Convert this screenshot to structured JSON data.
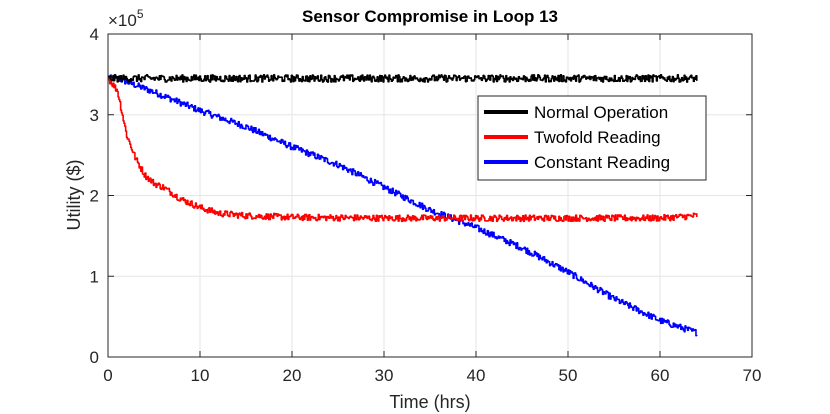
{
  "chart_data": {
    "type": "line",
    "title": "Sensor Compromise in Loop 13",
    "xlabel": "Time (hrs)",
    "ylabel": "Utility ($)",
    "xlim": [
      0,
      70
    ],
    "ylim": [
      0,
      4
    ],
    "y_scale_label": "×10",
    "y_scale_exponent": "5",
    "grid": true,
    "legend_position": "right",
    "xticks": [
      "0",
      "10",
      "20",
      "30",
      "40",
      "50",
      "60",
      "70"
    ],
    "yticks": [
      "0",
      "1",
      "2",
      "3",
      "4"
    ],
    "series": [
      {
        "name": "Normal Operation",
        "color": "#000000",
        "x": [
          0,
          5,
          10,
          15,
          20,
          25,
          30,
          35,
          40,
          45,
          50,
          55,
          60,
          64
        ],
        "y": [
          3.45,
          3.45,
          3.45,
          3.45,
          3.45,
          3.45,
          3.45,
          3.45,
          3.45,
          3.45,
          3.45,
          3.45,
          3.45,
          3.45
        ]
      },
      {
        "name": "Twofold Reading",
        "color": "#ff0000",
        "x": [
          0,
          1,
          2,
          3,
          4,
          5,
          6,
          8,
          10,
          12,
          15,
          20,
          30,
          40,
          50,
          60,
          64
        ],
        "y": [
          3.45,
          3.3,
          2.75,
          2.45,
          2.25,
          2.15,
          2.1,
          1.95,
          1.85,
          1.78,
          1.75,
          1.73,
          1.72,
          1.72,
          1.72,
          1.72,
          1.75
        ]
      },
      {
        "name": "Constant Reading",
        "color": "#0000ff",
        "x": [
          0,
          1,
          5,
          10,
          15,
          20,
          25,
          30,
          35,
          40,
          45,
          50,
          55,
          60,
          64
        ],
        "y": [
          3.45,
          3.45,
          3.28,
          3.05,
          2.85,
          2.6,
          2.38,
          2.1,
          1.82,
          1.6,
          1.35,
          1.05,
          0.72,
          0.45,
          0.3
        ]
      }
    ]
  }
}
